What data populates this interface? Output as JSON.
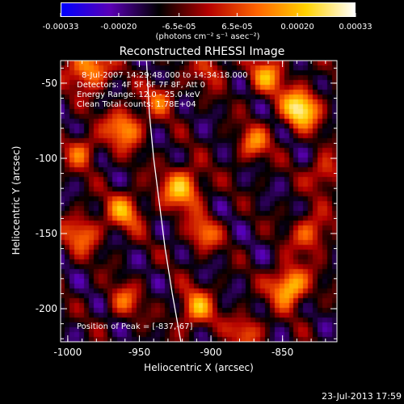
{
  "colorbar": {
    "tick_labels": [
      "-0.00033",
      "-0.00020",
      "-6.5e-05",
      "6.5e-05",
      "0.00020",
      "0.00033"
    ],
    "tick_values": [
      -0.00033,
      -0.0002,
      -6.5e-05,
      6.5e-05,
      0.0002,
      0.00033
    ],
    "range": [
      -0.00033,
      0.00033
    ],
    "unit_label": "(photons cm⁻² s⁻¹ asec⁻²)"
  },
  "chart_data": {
    "type": "heatmap",
    "title": "Reconstructed RHESSI Image",
    "xlabel": "Heliocentric X (arcsec)",
    "ylabel": "Heliocentric Y (arcsec)",
    "xlim": [
      -1005,
      -812
    ],
    "ylim": [
      -222,
      -35
    ],
    "x_ticks": [
      -1000,
      -950,
      -900,
      -850
    ],
    "y_ticks": [
      -50,
      -100,
      -150,
      -200
    ],
    "colormap": [
      "#0000ff",
      "#5a00b4",
      "#000000",
      "#b40000",
      "#ff6400",
      "#ffd200",
      "#ffffff"
    ],
    "limb_curve": {
      "x": [
        -945,
        -943,
        -940,
        -936,
        -932,
        -927,
        -921
      ],
      "y": [
        -35,
        -70,
        -100,
        -130,
        -160,
        -190,
        -222
      ]
    },
    "annotations": {
      "line1": "8-Jul-2007 14:29:48.000 to 14:34:18.000",
      "line2": "Detectors: 4F 5F 6F 7F 8F, Att 0",
      "line3": "Energy Range: 12.0 - 25.0 keV",
      "line4": "Clean     Total counts: 1.78E+04",
      "peak": "Position of Peak = [-837,-67]"
    },
    "sources": [
      {
        "x": -837,
        "y": -67,
        "amp": 1.0,
        "sigma": 9
      },
      {
        "x": -985,
        "y": -40,
        "amp": 0.75,
        "sigma": 10
      },
      {
        "x": -960,
        "y": -80,
        "amp": 0.7,
        "sigma": 9
      },
      {
        "x": -920,
        "y": -120,
        "amp": 0.75,
        "sigma": 10
      },
      {
        "x": -960,
        "y": -135,
        "amp": 0.6,
        "sigma": 9
      },
      {
        "x": -905,
        "y": -150,
        "amp": 0.55,
        "sigma": 8
      },
      {
        "x": -860,
        "y": -45,
        "amp": 0.6,
        "sigma": 9
      },
      {
        "x": -870,
        "y": -90,
        "amp": 0.55,
        "sigma": 8
      },
      {
        "x": -820,
        "y": -110,
        "amp": 0.5,
        "sigma": 8
      },
      {
        "x": -830,
        "y": -150,
        "amp": 0.55,
        "sigma": 9
      },
      {
        "x": -845,
        "y": -185,
        "amp": 0.9,
        "sigma": 9
      },
      {
        "x": -910,
        "y": -200,
        "amp": 0.65,
        "sigma": 9
      },
      {
        "x": -960,
        "y": -195,
        "amp": 0.45,
        "sigma": 8
      },
      {
        "x": -990,
        "y": -150,
        "amp": 0.55,
        "sigma": 9
      },
      {
        "x": -990,
        "y": -95,
        "amp": 0.5,
        "sigma": 8
      },
      {
        "x": -875,
        "y": -215,
        "amp": 0.5,
        "sigma": 8
      },
      {
        "x": -935,
        "y": -60,
        "amp": 0.45,
        "sigma": 8
      },
      {
        "x": -900,
        "y": -40,
        "amp": 0.4,
        "sigma": 8
      }
    ],
    "grid": false
  },
  "footer": {
    "timestamp": "23-Jul-2013 17:59"
  }
}
